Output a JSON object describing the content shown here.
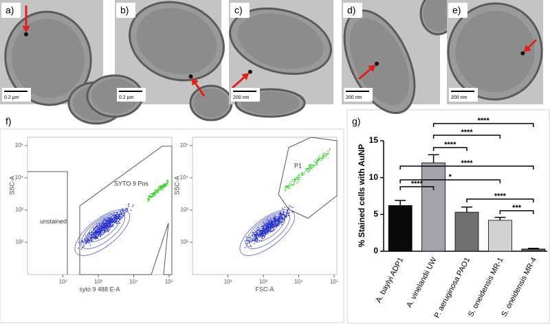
{
  "panels": [
    {
      "label": "a)",
      "scale_bar": "0.2 µm"
    },
    {
      "label": "b)",
      "scale_bar": "0.2 µm"
    },
    {
      "label": "c)",
      "scale_bar": "200 nm"
    },
    {
      "label": "d)",
      "scale_bar": "200 nm"
    },
    {
      "label": "e)",
      "scale_bar": "200 nm"
    }
  ],
  "flow": {
    "label": "f)",
    "plots": [
      {
        "x_label": "syto 9 488 E-A",
        "y_label": "SSC-A",
        "gates": [
          "unstained",
          "SYTO 9 Pos"
        ],
        "xscale": "log",
        "yscale": "log",
        "xlim": [
          10,
          120000
        ],
        "ylim": [
          10,
          180000
        ],
        "xticks": [
          {
            "value": 100,
            "label": "10²"
          },
          {
            "value": 1000,
            "label": "10³"
          },
          {
            "value": 10000,
            "label": "10⁴"
          },
          {
            "value": 100000,
            "label": "10⁵"
          }
        ],
        "yticks": [
          {
            "value": 100,
            "label": "10²"
          },
          {
            "value": 1000,
            "label": "10³"
          },
          {
            "value": 10000,
            "label": "10⁴"
          },
          {
            "value": 100000,
            "label": "10⁵"
          }
        ]
      },
      {
        "x_label": "FSC-A",
        "y_label": "SSC-A",
        "gates": [
          "P1"
        ],
        "xscale": "log",
        "yscale": "log",
        "xlim": [
          10,
          120000
        ],
        "ylim": [
          10,
          180000
        ],
        "xticks": [
          {
            "value": 100,
            "label": "10²"
          },
          {
            "value": 1000,
            "label": "10³"
          },
          {
            "value": 10000,
            "label": "10⁴"
          },
          {
            "value": 100000,
            "label": "10⁵"
          }
        ],
        "yticks": [
          {
            "value": 100,
            "label": "10²"
          },
          {
            "value": 1000,
            "label": "10³"
          },
          {
            "value": 10000,
            "label": "10⁴"
          },
          {
            "value": 100000,
            "label": "10⁵"
          }
        ]
      }
    ]
  },
  "chart_data": {
    "type": "bar",
    "panel_label": "g)",
    "y_label": "% Stained cells with AuNP",
    "categories": [
      "A. baylyi ADP1",
      "A. vinelandii UW",
      "P. aeruginosa PAO1",
      "S. oneidensis MR-1",
      "S. oneidensis MR-4"
    ],
    "values": [
      6.2,
      12.0,
      5.3,
      4.2,
      0.3
    ],
    "errors": [
      0.7,
      1.1,
      0.7,
      0.4,
      0.1
    ],
    "colors": [
      "#0a0a0a",
      "#a3a3ab",
      "#707070",
      "#d2d2d2",
      "#555555"
    ],
    "ylim": [
      0,
      15
    ],
    "yticks": [
      0,
      5,
      10,
      15
    ],
    "comparisons": [
      {
        "groups": [
          1,
          4
        ],
        "label": "****"
      },
      {
        "groups": [
          1,
          3
        ],
        "label": "****"
      },
      {
        "groups": [
          1,
          2
        ],
        "label": "****"
      },
      {
        "groups": [
          0,
          4
        ],
        "label": "****"
      },
      {
        "groups": [
          0,
          3
        ],
        "label": "*"
      },
      {
        "groups": [
          0,
          1
        ],
        "label": "****"
      },
      {
        "groups": [
          2,
          4
        ],
        "label": "****"
      },
      {
        "groups": [
          3,
          4
        ],
        "label": "***"
      }
    ]
  }
}
